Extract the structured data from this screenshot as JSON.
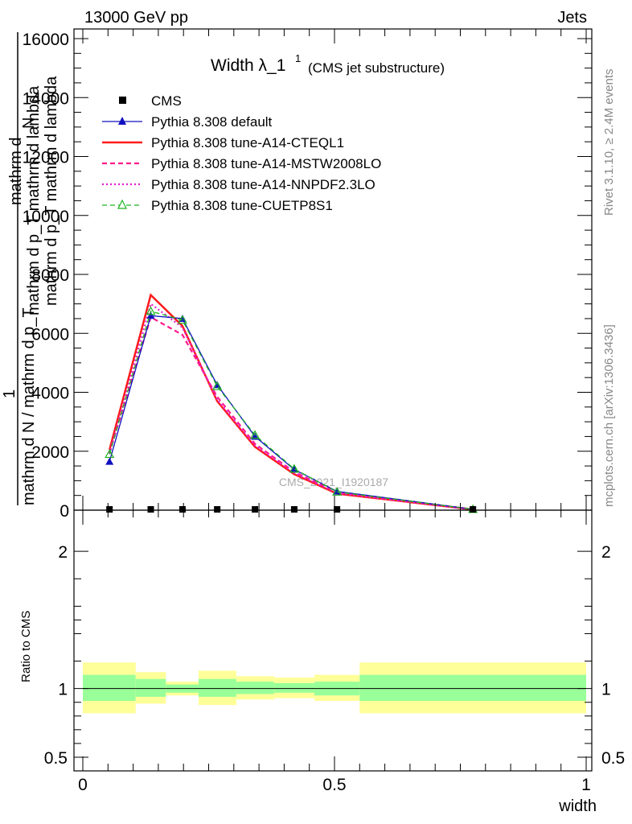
{
  "header": {
    "left": "13000 GeV pp",
    "right": "Jets"
  },
  "side_labels": {
    "rivet": "Rivet 3.1.10, ≥ 2.4M events",
    "mcplots": "mcplots.cern.ch [arXiv:1306.3436]"
  },
  "chart_data": {
    "type": "line",
    "title_main": "Width λ_1",
    "title_sup": "1",
    "title_sub": "(CMS jet substructure)",
    "watermark": "CMS_2021_I1920187",
    "ylabel_top": {
      "numerator_line1": "mathrm d",
      "numerator_line2": "N",
      "numerator_line3": "mathrm d p_T mathrm d lambda",
      "numerator_line4": "mathrm d p_T mathrm d lambda",
      "fraction_1": "1",
      "denominator_line": "mathrm d N / mathrm d p_T"
    },
    "ylabel_ratio": "Ratio to CMS",
    "xlabel": "width",
    "xlim": [
      0,
      1
    ],
    "ylim_main": [
      0,
      16000
    ],
    "ylim_ratio": [
      0.4,
      2.3
    ],
    "yticks_main": [
      {
        "v": 0,
        "label": "0"
      },
      {
        "v": 2000,
        "label": "2000"
      },
      {
        "v": 4000,
        "label": "4000"
      },
      {
        "v": 6000,
        "label": "6000"
      },
      {
        "v": 8000,
        "label": "8000"
      },
      {
        "v": 10000,
        "label": "10000"
      },
      {
        "v": 12000,
        "label": "12000"
      },
      {
        "v": 14000,
        "label": "14000"
      },
      {
        "v": 16000,
        "label": "16000"
      }
    ],
    "yticks_ratio": [
      {
        "v": 0.5,
        "label": "0.5"
      },
      {
        "v": 1,
        "label": "1"
      },
      {
        "v": 2,
        "label": "2"
      }
    ],
    "xticks": [
      {
        "v": 0,
        "label": "0"
      },
      {
        "v": 0.5,
        "label": "0.5"
      },
      {
        "v": 1,
        "label": "1"
      }
    ],
    "x": [
      0.053,
      0.135,
      0.198,
      0.267,
      0.342,
      0.42,
      0.505,
      0.775
    ],
    "bin_edges": [
      0.0,
      0.105,
      0.165,
      0.23,
      0.305,
      0.38,
      0.46,
      0.55,
      1.0
    ],
    "series": [
      {
        "name": "CMS",
        "color": "#000000",
        "marker": "square",
        "values": [
          0,
          0,
          0,
          0,
          0,
          0,
          0,
          0
        ]
      },
      {
        "name": "Pythia 8.308 default",
        "color": "#1010c0",
        "marker": "triangle",
        "values": [
          1650,
          6600,
          6500,
          4250,
          2500,
          1380,
          640,
          30
        ]
      },
      {
        "name": "Pythia 8.308 tune-A14-CTEQL1",
        "color": "#ff1a1a",
        "marker": "none",
        "values": [
          2050,
          7300,
          6250,
          3700,
          2150,
          1220,
          560,
          25
        ]
      },
      {
        "name": "Pythia 8.308 tune-A14-MSTW2008LO",
        "color": "#ff1a8c",
        "marker": "none",
        "values": [
          1950,
          6550,
          5950,
          3850,
          2250,
          1300,
          600,
          25
        ]
      },
      {
        "name": "Pythia 8.308 tune-A14-NNPDF2.3LO",
        "color": "#e020d0",
        "marker": "none",
        "values": [
          1900,
          7000,
          6200,
          3750,
          2200,
          1260,
          580,
          25
        ]
      },
      {
        "name": "Pythia 8.308 tune-CUETP8S1",
        "color": "#22b422",
        "marker": "open-triangle",
        "values": [
          1900,
          6750,
          6450,
          4200,
          2550,
          1400,
          620,
          30
        ]
      }
    ],
    "ratio_bands": {
      "inner_color": "#99ff99",
      "outer_color": "#ffff99",
      "inner": [
        [
          0.91,
          1.1
        ],
        [
          0.94,
          1.07
        ],
        [
          0.97,
          1.03
        ],
        [
          0.94,
          1.07
        ],
        [
          0.96,
          1.05
        ],
        [
          0.97,
          1.04
        ],
        [
          0.95,
          1.05
        ],
        [
          0.91,
          1.1
        ]
      ],
      "outer": [
        [
          0.82,
          1.19
        ],
        [
          0.89,
          1.12
        ],
        [
          0.95,
          1.05
        ],
        [
          0.88,
          1.13
        ],
        [
          0.92,
          1.09
        ],
        [
          0.93,
          1.08
        ],
        [
          0.91,
          1.1
        ],
        [
          0.82,
          1.19
        ]
      ]
    }
  }
}
